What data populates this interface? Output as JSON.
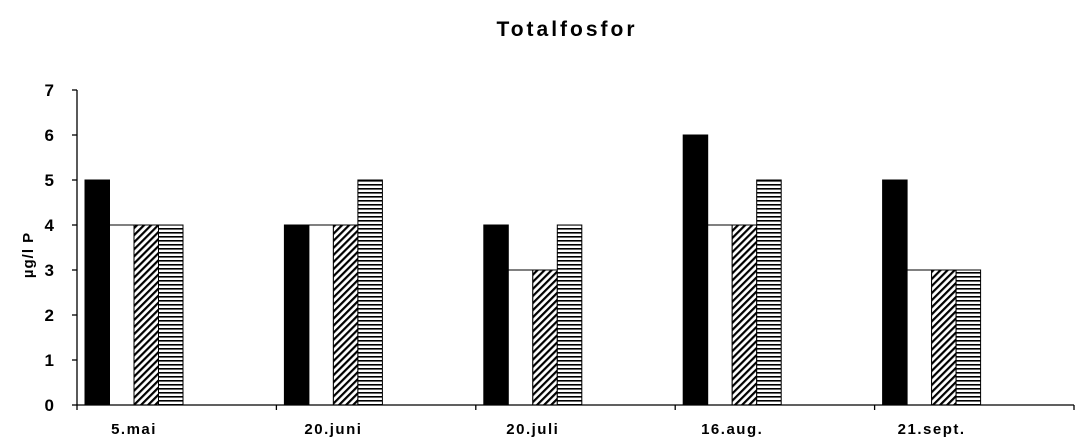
{
  "chart_data": {
    "type": "bar",
    "title": "Totalfosfor",
    "xlabel": "",
    "ylabel": "µg/l P",
    "ylim": [
      0,
      7
    ],
    "yticks": [
      0,
      1,
      2,
      3,
      4,
      5,
      6,
      7
    ],
    "grid": false,
    "legend": "none",
    "categories": [
      "5.mai",
      "20.juni",
      "20.juli",
      "16.aug.",
      "21.sept."
    ],
    "series": [
      {
        "values": [
          5,
          4,
          4,
          6,
          5
        ],
        "fill": "solid-black"
      },
      {
        "values": [
          4,
          4,
          3,
          4,
          3
        ],
        "fill": "white"
      },
      {
        "values": [
          4,
          4,
          3,
          4,
          3
        ],
        "fill": "diagonal-hatch"
      },
      {
        "values": [
          4,
          5,
          4,
          5,
          3
        ],
        "fill": "horizontal-lines"
      }
    ]
  }
}
